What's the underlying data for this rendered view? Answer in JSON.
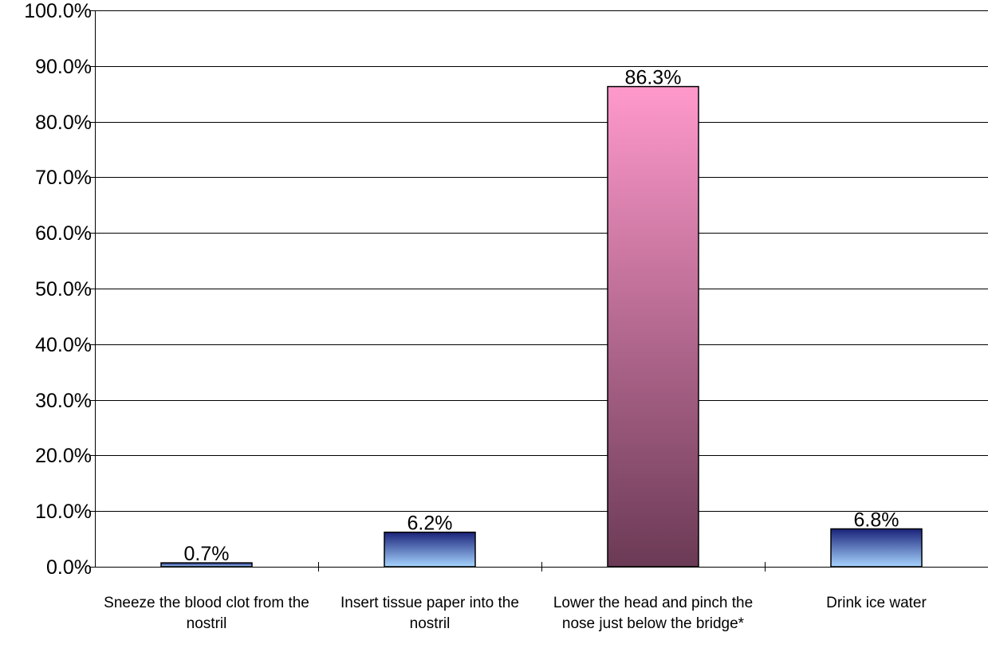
{
  "chart_data": {
    "type": "bar",
    "categories": [
      "Sneeze the blood clot from the nostril",
      "Insert tissue paper into the nostril",
      "Lower the head and pinch the nose just below the bridge*",
      "Drink ice water"
    ],
    "values": [
      0.7,
      6.2,
      86.3,
      6.8
    ],
    "data_labels": [
      "0.7%",
      "6.2%",
      "86.3%",
      "6.8%"
    ],
    "highlight_index": 2,
    "ylim": [
      0,
      100
    ],
    "yticks": [
      0,
      10,
      20,
      30,
      40,
      50,
      60,
      70,
      80,
      90,
      100
    ],
    "ytick_labels": [
      "0.0%",
      "10.0%",
      "20.0%",
      "30.0%",
      "40.0%",
      "50.0%",
      "60.0%",
      "70.0%",
      "80.0%",
      "90.0%",
      "100.0%"
    ],
    "grid": true,
    "legend": "none",
    "colors": {
      "blue_top": "#1a237a",
      "blue_bottom": "#a6d4ff",
      "pink_top": "#ff99cc",
      "pink_bottom": "#6b3a55",
      "gridline": "#000000"
    }
  }
}
